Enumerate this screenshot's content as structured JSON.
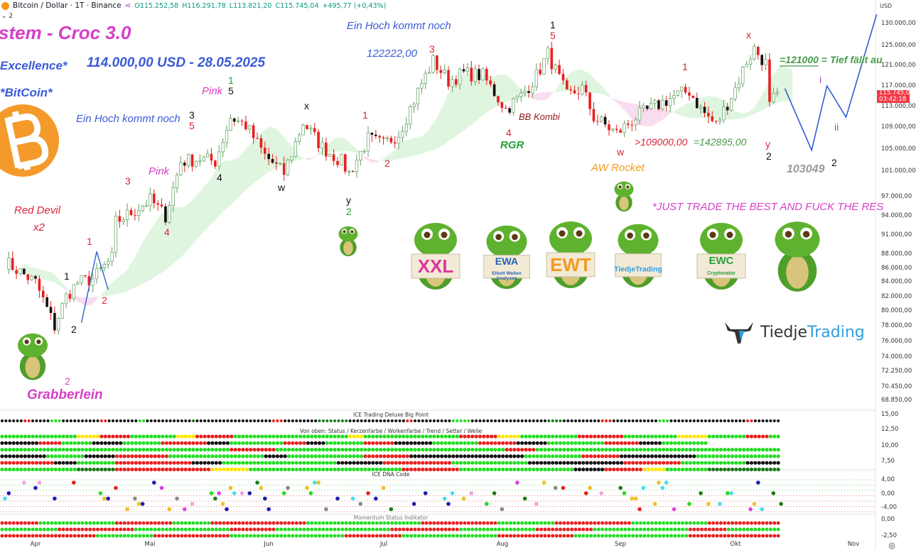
{
  "header": {
    "symbol": "Bitcoin / Dollar · 1T · Binance",
    "open": "O115.252,58",
    "high": "H116.291,78",
    "low": "L113.821,20",
    "close": "C115.745,04",
    "change": "+495,77 (+0,43%)",
    "indicator_toggle": "⌄ 2"
  },
  "price_axis": {
    "currency": "USD",
    "last_price": "115.745,04",
    "countdown": "03:42:18",
    "ticks": [
      "130.000,00",
      "125.000,00",
      "121.000,00",
      "117.000,00",
      "113.000,00",
      "109.000,00",
      "105.000,00",
      "101.000,00",
      "97.000,00",
      "94.000,00",
      "91.000,00",
      "88.000,00",
      "86.000,00",
      "84.000,00",
      "82.000,00",
      "80.000,00",
      "78.000,00",
      "76.000,00",
      "74.000,00",
      "72.250,00",
      "70.450,00",
      "68.850,00"
    ],
    "panel1_ticks": [
      "15,00",
      "12,50",
      "10,00",
      "7,50"
    ],
    "panel2_ticks": [
      "4,00",
      "0,00",
      "-4,00"
    ],
    "panel3_ticks": [
      "0,00",
      "-2,50"
    ]
  },
  "time_axis": [
    "Apr",
    "Mai",
    "Jun",
    "Jul",
    "Aug",
    "Sep",
    "Okt",
    "Nov"
  ],
  "annotations": [
    {
      "text": "stem - Croc 3.0",
      "color": "#d63fc8"
    },
    {
      "text": "Excellence*",
      "color": "#3a5bd8"
    },
    {
      "text": "114.000,00 USD - 28.05.2025",
      "color": "#3a5bd8"
    },
    {
      "text": "*BitCoin*",
      "color": "#3a5bd8"
    },
    {
      "text": "Ein Hoch kommt noch",
      "color": "#3a5bd8"
    },
    {
      "text": "Ein Hoch kommt noch",
      "color": "#3a5bd8"
    },
    {
      "text": "122222,00",
      "color": "#3a5bd8"
    },
    {
      "text": "Pink",
      "color": "#d63fc8"
    },
    {
      "text": "Pink",
      "color": "#d63fc8"
    },
    {
      "text": "Red Devil",
      "color": "#d7263d"
    },
    {
      "text": "x2",
      "color": "#d7263d"
    },
    {
      "text": "Grabberlein",
      "color": "#d63fc8"
    },
    {
      "text": "BB Kombi",
      "color": "#8b1a1a"
    },
    {
      "text": "RGR",
      "color": "#22a13a"
    },
    {
      "text": "AW Rocket",
      "color": "#f29a1f"
    },
    {
      "text": ">109000,00",
      "color": "#d7263d"
    },
    {
      "text": "=142895,00",
      "color": "#4a9a4a"
    },
    {
      "text": "=121000 = Tief fällt au",
      "color": "#4a9a4a"
    },
    {
      "text": "103049",
      "color": "#999999"
    },
    {
      "text": "*JUST TRADE THE BEST AND FUCK THE RES",
      "color": "#d63fc8"
    }
  ],
  "wave_labels": [
    {
      "t": "1",
      "c": "#111"
    },
    {
      "t": "5",
      "c": "#d7263d"
    },
    {
      "t": "3",
      "c": "#d7263d"
    },
    {
      "t": "1",
      "c": "#22a13a"
    },
    {
      "t": "5",
      "c": "#111"
    },
    {
      "t": "3",
      "c": "#111"
    },
    {
      "t": "5",
      "c": "#d7263d"
    },
    {
      "t": "3",
      "c": "#d7263d"
    },
    {
      "t": "4",
      "c": "#d7263d"
    },
    {
      "t": "4",
      "c": "#111"
    },
    {
      "t": "w",
      "c": "#111"
    },
    {
      "t": "x",
      "c": "#111"
    },
    {
      "t": "y",
      "c": "#111"
    },
    {
      "t": "2",
      "c": "#22a13a"
    },
    {
      "t": "1",
      "c": "#d7263d"
    },
    {
      "t": "2",
      "c": "#d7263d"
    },
    {
      "t": "4",
      "c": "#d7263d"
    },
    {
      "t": "w",
      "c": "#d7263d"
    },
    {
      "t": "1",
      "c": "#d7263d"
    },
    {
      "t": "x",
      "c": "#d7263d"
    },
    {
      "t": "y",
      "c": "#d7263d"
    },
    {
      "t": "2",
      "c": "#111"
    },
    {
      "t": "2",
      "c": "#111"
    },
    {
      "t": "i",
      "c": "#a040c0"
    },
    {
      "t": "ii",
      "c": "#a040c0"
    },
    {
      "t": "1",
      "c": "#d7263d"
    },
    {
      "t": "1",
      "c": "#111"
    },
    {
      "t": "2",
      "c": "#111"
    },
    {
      "t": "2",
      "c": "#d7263d"
    },
    {
      "t": "2",
      "c": "#d63fc8"
    }
  ],
  "mascots": {
    "signs": [
      "XXL",
      "EWA",
      "Elliott Wellen",
      "Analysen",
      "EWT",
      "TiedjeTrading",
      "EWC",
      "Cryptonator"
    ],
    "sign_colors": [
      "#e0359c",
      "#2563b8",
      "#f29a1f",
      "#2f9ee0",
      "#2aa13a"
    ]
  },
  "logo": {
    "part1": "Tiedje",
    "part2": "Trading"
  },
  "panels": {
    "panel1_title": "ICE Trading Deluxe Big Point",
    "panel1_subtitle": "Von oben: Status / Kerzenfarbe / Wolkenfarbe / Trend / Setter / Welle",
    "panel2_title": "ICE DNA Code",
    "panel3_title": "Momentum Status Indikator"
  },
  "colors": {
    "up": "#ffffff",
    "up_border": "#5f9f5f",
    "down": "#e8201f",
    "cloud_bull": "#dff5df",
    "cloud_bear": "#f8dcef",
    "forecast": "#2f5fd0",
    "K": "#111111",
    "R": "#e8201f",
    "G": "#22dd22",
    "D": "#1a7a1a",
    "Y": "#ffe600"
  },
  "chart_data": {
    "type": "candlestick",
    "scale": "log",
    "ylim": [
      68850,
      130000
    ],
    "xlim": [
      "2025-03-24",
      "2025-11-07"
    ],
    "close_series": [
      [
        "2025-03-24",
        87000
      ],
      [
        "2025-04-01",
        84000
      ],
      [
        "2025-04-06",
        78000
      ],
      [
        "2025-04-09",
        82000
      ],
      [
        "2025-04-12",
        84000
      ],
      [
        "2025-04-16",
        84500
      ],
      [
        "2025-04-21",
        87500
      ],
      [
        "2025-04-22",
        93000
      ],
      [
        "2025-04-26",
        94500
      ],
      [
        "2025-05-01",
        96500
      ],
      [
        "2025-05-05",
        94000
      ],
      [
        "2025-05-09",
        103000
      ],
      [
        "2025-05-14",
        103500
      ],
      [
        "2025-05-18",
        103000
      ],
      [
        "2025-05-22",
        111000
      ],
      [
        "2025-05-26",
        109500
      ],
      [
        "2025-05-31",
        104000
      ],
      [
        "2025-06-05",
        101000
      ],
      [
        "2025-06-10",
        110000
      ],
      [
        "2025-06-15",
        105500
      ],
      [
        "2025-06-20",
        103000
      ],
      [
        "2025-06-22",
        101000
      ],
      [
        "2025-06-27",
        107000
      ],
      [
        "2025-07-01",
        106000
      ],
      [
        "2025-07-05",
        108000
      ],
      [
        "2025-07-11",
        117500
      ],
      [
        "2025-07-14",
        122000
      ],
      [
        "2025-07-18",
        118000
      ],
      [
        "2025-07-22",
        119500
      ],
      [
        "2025-07-27",
        119000
      ],
      [
        "2025-08-02",
        112500
      ],
      [
        "2025-08-06",
        115000
      ],
      [
        "2025-08-10",
        119000
      ],
      [
        "2025-08-13",
        123500
      ],
      [
        "2025-08-18",
        115000
      ],
      [
        "2025-08-22",
        116500
      ],
      [
        "2025-08-25",
        111000
      ],
      [
        "2025-08-31",
        108000
      ],
      [
        "2025-09-05",
        111000
      ],
      [
        "2025-09-10",
        113000
      ],
      [
        "2025-09-15",
        115000
      ],
      [
        "2025-09-19",
        116000
      ],
      [
        "2025-09-22",
        112500
      ],
      [
        "2025-09-26",
        109500
      ],
      [
        "2025-10-01",
        116500
      ],
      [
        "2025-10-04",
        122000
      ],
      [
        "2025-10-06",
        124500
      ],
      [
        "2025-10-09",
        121500
      ],
      [
        "2025-10-10",
        113000
      ],
      [
        "2025-10-12",
        115745
      ]
    ],
    "forecast": [
      [
        "2025-10-14",
        116500
      ],
      [
        "2025-10-21",
        105000
      ],
      [
        "2025-10-25",
        117000
      ],
      [
        "2025-10-30",
        111000
      ],
      [
        "2025-11-07",
        132000
      ]
    ],
    "rows": {
      "bigpoint": "K6R2K5G3K10R2K8G2K12D1K20R3K9D8K15R2K10G5K20D4K10R3K12G3K20R2K20",
      "status": "G20Y6R8G12Y5R10G30Y4G25R10Y6G15R12G14Y8G10R6G14",
      "kerzen": "K10R6G8K8G10R12K6G14R6K5G10R8K10G12R10K8G15R9K6G12",
      "wolke": "G60R12G60R8G65",
      "trend": "K12G10K8R14G25K6G20R12K30G15R10K20G23",
      "setter": "R14K6G10R20K8G30K12R18G20K25R15G17K10",
      "welle": "G20D10R25Y10G40R15G30K8R10Y6G11D20",
      "momentum1": "R10G20R15G10R25G30R20G15R20G20R20",
      "momentum2": "G15R20G25R12G30R18G20R15G25R10G15",
      "momentum3": "R25G15R20G30R15G25R20G30R25"
    },
    "dna_palette": [
      "#e8201f",
      "#1a1ab8",
      "#22dd22",
      "#f0c020",
      "#e040e0",
      "#1a7a1a",
      "#40e0f0",
      "#f0a0e0",
      "#888888"
    ]
  }
}
